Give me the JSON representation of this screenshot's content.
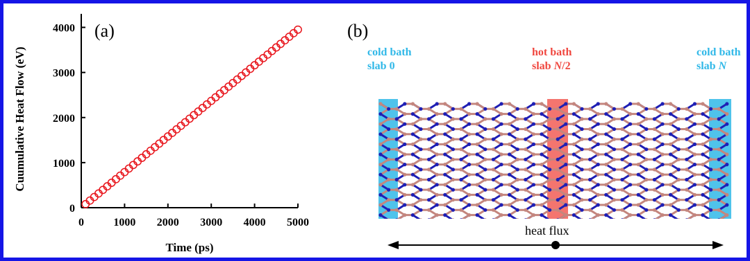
{
  "colors": {
    "frame": "#1515e6",
    "marker": "#e8141b",
    "cold_bath": "#30b8e8",
    "hot_bath": "#f0473f",
    "atom_b": "#c4867e",
    "atom_n": "#1f1fb4"
  },
  "panel_a": {
    "label": "(a)"
  },
  "panel_b": {
    "label": "(b)",
    "cold_left": {
      "line1": "cold bath",
      "line2_prefix": "slab ",
      "line2_var": "",
      "line2_suffix": "0"
    },
    "hot": {
      "line1": "hot bath",
      "line2_prefix": "slab ",
      "line2_var": "N",
      "line2_suffix": "/2"
    },
    "cold_right": {
      "line1": "cold bath",
      "line2_prefix": "slab ",
      "line2_var": "N",
      "line2_suffix": ""
    },
    "flux_label": "heat flux"
  },
  "chart_data": {
    "type": "scatter",
    "xlabel": "Time (ps)",
    "ylabel": "Cuumulative  Heat Flow (eV)",
    "xlim": [
      0,
      5000
    ],
    "ylim": [
      0,
      4300
    ],
    "xticks": [
      "0",
      "1000",
      "2000",
      "3000",
      "4000",
      "5000"
    ],
    "yticks": [
      "0",
      "1000",
      "2000",
      "3000",
      "4000"
    ],
    "grid": false,
    "series": [
      {
        "marker": "open-circle",
        "x": [
          100,
          200,
          300,
          400,
          500,
          600,
          700,
          800,
          900,
          1000,
          1100,
          1200,
          1300,
          1400,
          1500,
          1600,
          1700,
          1800,
          1900,
          2000,
          2100,
          2200,
          2300,
          2400,
          2500,
          2600,
          2700,
          2800,
          2900,
          3000,
          3100,
          3200,
          3300,
          3400,
          3500,
          3600,
          3700,
          3800,
          3900,
          4000,
          4100,
          4200,
          4300,
          4400,
          4500,
          4600,
          4700,
          4800,
          4900,
          5000
        ],
        "y": [
          79,
          158,
          237,
          316,
          395,
          474,
          553,
          632,
          711,
          790,
          869,
          948,
          1027,
          1106,
          1185,
          1264,
          1343,
          1422,
          1501,
          1580,
          1659,
          1738,
          1817,
          1896,
          1975,
          2054,
          2133,
          2212,
          2291,
          2370,
          2449,
          2528,
          2607,
          2686,
          2765,
          2844,
          2923,
          3002,
          3081,
          3160,
          3239,
          3318,
          3397,
          3476,
          3555,
          3634,
          3713,
          3792,
          3871,
          3950
        ]
      }
    ]
  }
}
